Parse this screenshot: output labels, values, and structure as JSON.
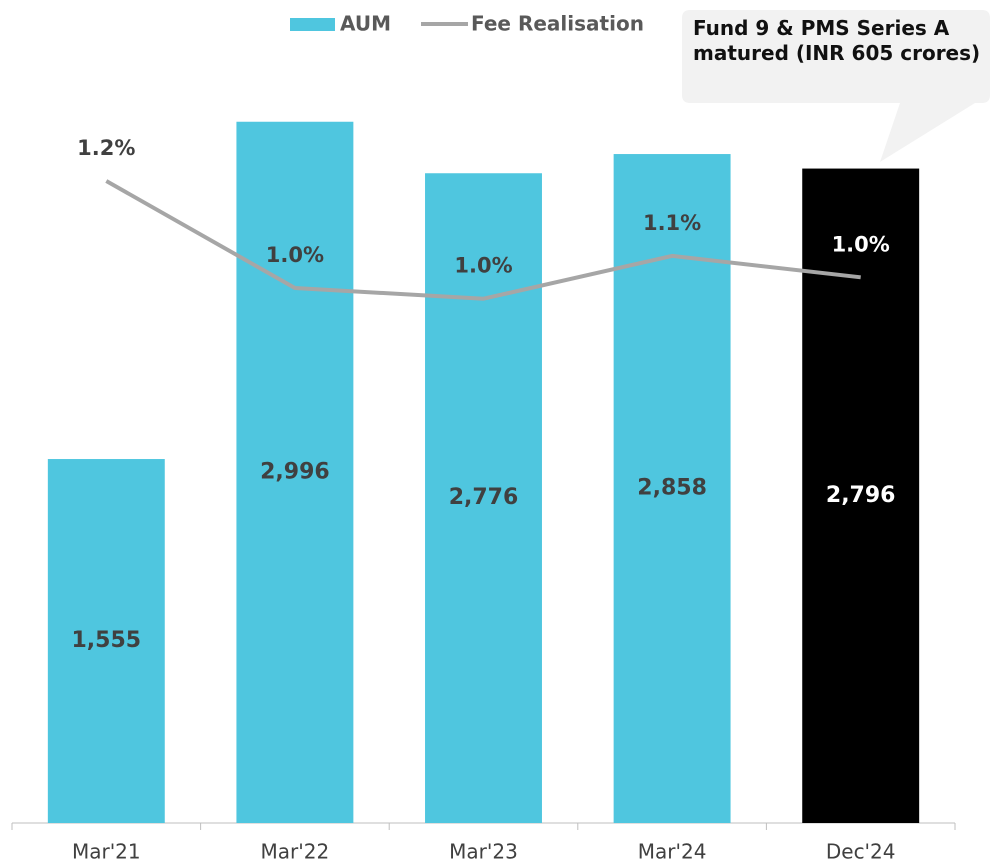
{
  "chart_data": {
    "type": "bar",
    "categories": [
      "Mar'21",
      "Mar'22",
      "Mar'23",
      "Mar'24",
      "Dec'24"
    ],
    "series": [
      {
        "name": "AUM",
        "type": "bar",
        "color": "#4fc6df",
        "colors": [
          "#4fc6df",
          "#4fc6df",
          "#4fc6df",
          "#4fc6df",
          "#000000"
        ],
        "values": [
          1555,
          2996,
          2776,
          2858,
          2796
        ],
        "value_labels": [
          "1,555",
          "2,996",
          "2,776",
          "2,858",
          "2,796"
        ]
      },
      {
        "name": "Fee Realisation",
        "type": "line",
        "axis": "y2",
        "color": "#a6a6a6",
        "values": [
          1.2,
          1.0,
          0.98,
          1.06,
          1.02
        ],
        "value_labels": [
          "1.2%",
          "1.0%",
          "1.0%",
          "1.1%",
          "1.0%"
        ]
      }
    ],
    "ylim": [
      0,
      3200
    ],
    "y2lim": [
      0,
      1.4
    ],
    "annotation": "Fund 9 & PMS Series A matured (INR 605 crores)"
  }
}
